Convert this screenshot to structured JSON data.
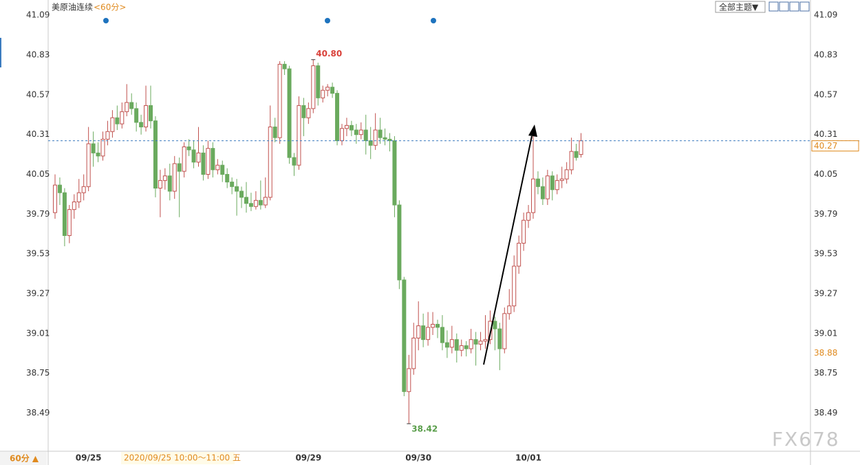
{
  "chart_data": {
    "type": "candlestick",
    "title": "美原油连续",
    "interval": "<60分>",
    "colors": {
      "up": "#c0504d",
      "down": "#6aaa5e"
    },
    "ylim": [
      38.24,
      41.19
    ],
    "yticks": [
      41.09,
      40.83,
      40.57,
      40.31,
      40.05,
      39.79,
      39.53,
      39.27,
      39.01,
      38.75,
      38.49
    ],
    "last_price": 40.27,
    "cursor_price": 38.88,
    "value_labels": {
      "high": "40.80",
      "low": "38.42"
    },
    "categories": [
      null,
      null,
      null,
      null,
      null,
      null,
      null,
      "09/25",
      null,
      null,
      null,
      null,
      null,
      null,
      null,
      null,
      null,
      null,
      null,
      null,
      null,
      null,
      null,
      null,
      null,
      null,
      null,
      null,
      null,
      null,
      null,
      null,
      null,
      null,
      null,
      null,
      null,
      null,
      null,
      null,
      null,
      null,
      null,
      null,
      null,
      null,
      null,
      null,
      null,
      null,
      null,
      null,
      null,
      "09/29",
      null,
      null,
      null,
      null,
      null,
      null,
      null,
      null,
      null,
      null,
      null,
      null,
      null,
      null,
      null,
      null,
      null,
      null,
      null,
      null,
      null,
      null,
      "09/30",
      null,
      null,
      null,
      null,
      null,
      null,
      null,
      null,
      null,
      null,
      null,
      null,
      null,
      null,
      null,
      null,
      null,
      null,
      null,
      null,
      null,
      null,
      "10/01",
      null,
      null,
      null,
      null,
      null,
      null,
      null,
      null,
      null,
      null,
      null
    ],
    "candles": [
      [
        39.8,
        40.05,
        39.76,
        39.98
      ],
      [
        39.98,
        40.03,
        39.85,
        39.93
      ],
      [
        39.93,
        39.96,
        39.58,
        39.65
      ],
      [
        39.65,
        39.85,
        39.6,
        39.82
      ],
      [
        39.82,
        39.92,
        39.76,
        39.87
      ],
      [
        39.87,
        40.02,
        39.83,
        39.93
      ],
      [
        39.93,
        40.05,
        39.88,
        39.97
      ],
      [
        39.97,
        40.36,
        39.94,
        40.25
      ],
      [
        40.25,
        40.33,
        40.1,
        40.19
      ],
      [
        40.19,
        40.26,
        40.13,
        40.17
      ],
      [
        40.17,
        40.33,
        40.14,
        40.28
      ],
      [
        40.28,
        40.4,
        40.24,
        40.33
      ],
      [
        40.33,
        40.47,
        40.29,
        40.42
      ],
      [
        40.42,
        40.5,
        40.34,
        40.38
      ],
      [
        40.38,
        40.52,
        40.35,
        40.46
      ],
      [
        40.46,
        40.64,
        40.43,
        40.52
      ],
      [
        40.52,
        40.58,
        40.44,
        40.48
      ],
      [
        40.48,
        40.52,
        40.33,
        40.39
      ],
      [
        40.39,
        40.44,
        40.31,
        40.36
      ],
      [
        40.36,
        40.63,
        40.33,
        40.5
      ],
      [
        40.5,
        40.63,
        40.35,
        40.4
      ],
      [
        40.4,
        40.43,
        39.9,
        39.96
      ],
      [
        39.96,
        40.08,
        39.77,
        40.01
      ],
      [
        40.01,
        40.09,
        39.95,
        40.04
      ],
      [
        40.04,
        40.12,
        39.88,
        39.94
      ],
      [
        39.94,
        40.17,
        39.89,
        40.12
      ],
      [
        40.12,
        40.16,
        39.77,
        40.07
      ],
      [
        40.07,
        40.26,
        40.03,
        40.23
      ],
      [
        40.23,
        40.28,
        40.17,
        40.21
      ],
      [
        40.21,
        40.27,
        40.09,
        40.13
      ],
      [
        40.13,
        40.36,
        40.1,
        40.19
      ],
      [
        40.19,
        40.24,
        40.01,
        40.05
      ],
      [
        40.05,
        40.27,
        40.02,
        40.22
      ],
      [
        40.22,
        40.26,
        40.03,
        40.08
      ],
      [
        40.08,
        40.15,
        40.05,
        40.11
      ],
      [
        40.11,
        40.14,
        40.0,
        40.05
      ],
      [
        40.05,
        40.09,
        39.96,
        40.0
      ],
      [
        40.0,
        40.03,
        39.92,
        39.97
      ],
      [
        39.97,
        40.02,
        39.78,
        39.94
      ],
      [
        39.94,
        39.97,
        39.83,
        39.9
      ],
      [
        39.9,
        40.0,
        39.8,
        39.86
      ],
      [
        39.86,
        39.93,
        39.81,
        39.84
      ],
      [
        39.84,
        39.94,
        39.82,
        39.88
      ],
      [
        39.88,
        40.01,
        39.82,
        39.85
      ],
      [
        39.85,
        40.03,
        39.83,
        39.9
      ],
      [
        39.9,
        40.5,
        39.88,
        40.36
      ],
      [
        40.36,
        40.42,
        40.26,
        40.29
      ],
      [
        40.29,
        40.79,
        40.25,
        40.77
      ],
      [
        40.77,
        40.79,
        40.7,
        40.74
      ],
      [
        40.74,
        40.76,
        40.12,
        40.16
      ],
      [
        40.16,
        40.19,
        40.04,
        40.11
      ],
      [
        40.11,
        40.56,
        40.08,
        40.5
      ],
      [
        40.5,
        40.55,
        40.3,
        40.42
      ],
      [
        40.42,
        40.52,
        40.38,
        40.48
      ],
      [
        40.48,
        40.8,
        40.45,
        40.76
      ],
      [
        40.76,
        40.78,
        40.5,
        40.55
      ],
      [
        40.55,
        40.63,
        40.52,
        40.6
      ],
      [
        40.6,
        40.64,
        40.56,
        40.62
      ],
      [
        40.62,
        40.65,
        40.55,
        40.58
      ],
      [
        40.58,
        40.6,
        40.24,
        40.27
      ],
      [
        40.27,
        40.38,
        40.24,
        40.35
      ],
      [
        40.35,
        40.42,
        40.3,
        40.37
      ],
      [
        40.37,
        40.4,
        40.3,
        40.34
      ],
      [
        40.34,
        40.38,
        40.25,
        40.31
      ],
      [
        40.31,
        40.39,
        40.28,
        40.34
      ],
      [
        40.34,
        40.44,
        40.18,
        40.27
      ],
      [
        40.27,
        40.36,
        40.15,
        40.24
      ],
      [
        40.24,
        40.45,
        40.21,
        40.34
      ],
      [
        40.34,
        40.42,
        40.25,
        40.29
      ],
      [
        40.29,
        40.35,
        40.24,
        40.28
      ],
      [
        40.28,
        40.32,
        40.2,
        40.27
      ],
      [
        40.27,
        40.3,
        39.77,
        39.85
      ],
      [
        39.85,
        39.88,
        39.3,
        39.36
      ],
      [
        39.36,
        39.38,
        38.6,
        38.63
      ],
      [
        38.63,
        38.87,
        38.42,
        38.78
      ],
      [
        38.78,
        39.08,
        38.74,
        38.98
      ],
      [
        38.98,
        39.22,
        38.9,
        39.06
      ],
      [
        39.06,
        39.14,
        38.92,
        38.97
      ],
      [
        38.97,
        39.15,
        38.93,
        39.05
      ],
      [
        39.05,
        39.15,
        39.0,
        39.07
      ],
      [
        39.07,
        39.1,
        38.98,
        39.05
      ],
      [
        39.05,
        39.13,
        38.9,
        38.95
      ],
      [
        38.95,
        39.03,
        38.85,
        38.92
      ],
      [
        38.92,
        39.06,
        38.88,
        38.97
      ],
      [
        38.97,
        39.01,
        38.82,
        38.9
      ],
      [
        38.9,
        38.97,
        38.86,
        38.93
      ],
      [
        38.93,
        38.96,
        38.86,
        38.91
      ],
      [
        38.91,
        39.04,
        38.88,
        38.97
      ],
      [
        38.97,
        39.02,
        38.8,
        38.94
      ],
      [
        38.94,
        39.02,
        38.9,
        38.96
      ],
      [
        38.96,
        39.13,
        38.91,
        38.97
      ],
      [
        38.97,
        39.16,
        38.94,
        39.09
      ],
      [
        39.09,
        39.12,
        38.9,
        39.04
      ],
      [
        39.04,
        39.08,
        38.77,
        38.91
      ],
      [
        38.91,
        39.18,
        38.88,
        39.14
      ],
      [
        39.14,
        39.3,
        39.1,
        39.19
      ],
      [
        39.19,
        39.52,
        39.15,
        39.45
      ],
      [
        39.45,
        39.65,
        39.4,
        39.6
      ],
      [
        39.6,
        39.8,
        39.55,
        39.75
      ],
      [
        39.75,
        39.85,
        39.7,
        39.8
      ],
      [
        39.8,
        40.3,
        39.76,
        40.02
      ],
      [
        40.02,
        40.07,
        39.92,
        39.97
      ],
      [
        39.97,
        40.03,
        39.85,
        39.89
      ],
      [
        39.89,
        40.08,
        39.85,
        40.04
      ],
      [
        40.04,
        40.07,
        39.88,
        39.95
      ],
      [
        39.95,
        40.05,
        39.92,
        40.01
      ],
      [
        40.01,
        40.1,
        39.96,
        40.02
      ],
      [
        40.02,
        40.13,
        39.99,
        40.08
      ],
      [
        40.08,
        40.29,
        40.05,
        40.2
      ],
      [
        40.2,
        40.25,
        40.14,
        40.16
      ],
      [
        40.18,
        40.32,
        40.16,
        40.27
      ]
    ]
  },
  "ui": {
    "theme_button": "全部主题▼",
    "footer_period": "60分 ▲",
    "footer_time": "2020/09/25 10:00～11:00 五",
    "watermark": "FX678"
  }
}
